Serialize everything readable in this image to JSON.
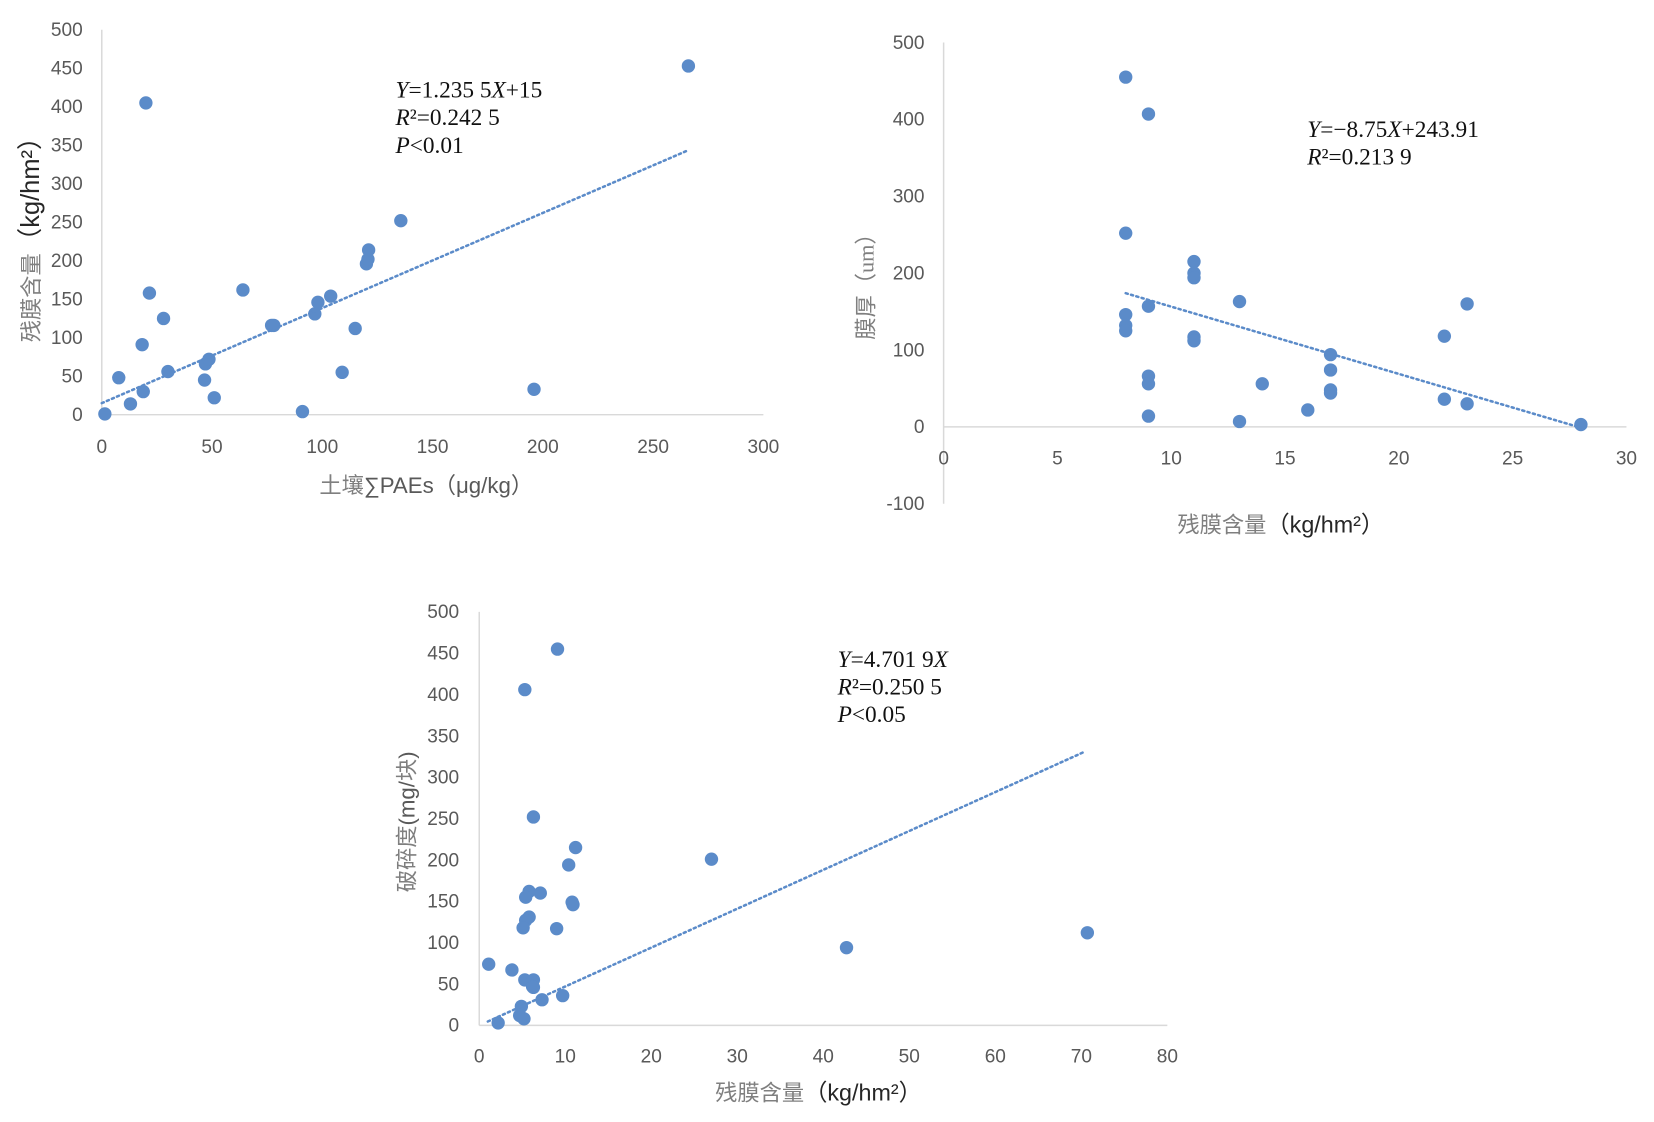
{
  "chart_data": [
    {
      "type": "scatter",
      "xlabel": "土壤∑PAEs（μg/kg）",
      "ylabel": "残膜含量（kg/hm²）",
      "xlim": [
        0,
        300
      ],
      "ylim": [
        0,
        500
      ],
      "xticks": [
        0,
        50,
        100,
        150,
        200,
        250,
        300
      ],
      "yticks": [
        0,
        50,
        100,
        150,
        200,
        250,
        300,
        350,
        400,
        450,
        500
      ],
      "grid": false,
      "color": "#5B8BC9",
      "points": [
        [
          1.4,
          1
        ],
        [
          7.7,
          48
        ],
        [
          13,
          14
        ],
        [
          18.3,
          91
        ],
        [
          18.8,
          30
        ],
        [
          20,
          405
        ],
        [
          21.6,
          158
        ],
        [
          28,
          125
        ],
        [
          30,
          56
        ],
        [
          46.6,
          45
        ],
        [
          47,
          66
        ],
        [
          48.6,
          72
        ],
        [
          51,
          22
        ],
        [
          64,
          162
        ],
        [
          77,
          116
        ],
        [
          78,
          116
        ],
        [
          91,
          4
        ],
        [
          96.6,
          131
        ],
        [
          98,
          146
        ],
        [
          103.8,
          154
        ],
        [
          109,
          55
        ],
        [
          114.9,
          112
        ],
        [
          120,
          196
        ],
        [
          120.7,
          202
        ],
        [
          121,
          214
        ],
        [
          135.6,
          252
        ],
        [
          196,
          33
        ],
        [
          266,
          453
        ]
      ],
      "trendline": {
        "style": "dotted",
        "slope": 1.2355,
        "intercept": 15,
        "x_range": [
          0,
          266
        ]
      },
      "annotation": [
        "Y=1.235 5X+15",
        "R²=0.242 5",
        "P<0.01"
      ]
    },
    {
      "type": "scatter",
      "xlabel": "残膜含量（kg/hm²）",
      "ylabel": "膜厚（um）",
      "xlim": [
        0,
        30
      ],
      "ylim": [
        -100,
        500
      ],
      "xticks": [
        0,
        5,
        10,
        15,
        20,
        25,
        30
      ],
      "yticks": [
        -100,
        0,
        100,
        200,
        300,
        400,
        500
      ],
      "grid": false,
      "color": "#5B8BC9",
      "points": [
        [
          8,
          455
        ],
        [
          9,
          407
        ],
        [
          8,
          252
        ],
        [
          11,
          215
        ],
        [
          11,
          200
        ],
        [
          11,
          194
        ],
        [
          13,
          163
        ],
        [
          23,
          160
        ],
        [
          9,
          157
        ],
        [
          8,
          146
        ],
        [
          8,
          132
        ],
        [
          8,
          125
        ],
        [
          11,
          117
        ],
        [
          11,
          112
        ],
        [
          22,
          118
        ],
        [
          17,
          94
        ],
        [
          17,
          74
        ],
        [
          9,
          66
        ],
        [
          9,
          56
        ],
        [
          14,
          56
        ],
        [
          17,
          48
        ],
        [
          17,
          44
        ],
        [
          16,
          22
        ],
        [
          9,
          14
        ],
        [
          22,
          36
        ],
        [
          23,
          30
        ],
        [
          13,
          7
        ],
        [
          28,
          3
        ]
      ],
      "trendline": {
        "style": "dotted",
        "slope": -8.75,
        "intercept": 243.91,
        "x_range": [
          8,
          28
        ]
      },
      "annotation": [
        "Y=−8.75X+243.91",
        "R²=0.213 9"
      ]
    },
    {
      "type": "scatter",
      "xlabel": "残膜含量（kg/hm²）",
      "ylabel": "破碎度(mg/块)",
      "xlim": [
        0,
        80
      ],
      "ylim": [
        0,
        500
      ],
      "xticks": [
        0,
        10,
        20,
        30,
        40,
        50,
        60,
        70,
        80
      ],
      "yticks": [
        0,
        50,
        100,
        150,
        200,
        250,
        300,
        350,
        400,
        450,
        500
      ],
      "grid": false,
      "color": "#5B8BC9",
      "points": [
        [
          9.1,
          455
        ],
        [
          5.3,
          406
        ],
        [
          6.3,
          252
        ],
        [
          11.2,
          215
        ],
        [
          27,
          201
        ],
        [
          10.4,
          194
        ],
        [
          5.8,
          162
        ],
        [
          7.1,
          160
        ],
        [
          5.4,
          155
        ],
        [
          10.8,
          149
        ],
        [
          10.9,
          146
        ],
        [
          5.8,
          131
        ],
        [
          5.4,
          127
        ],
        [
          5.1,
          118
        ],
        [
          9,
          117
        ],
        [
          70.7,
          112
        ],
        [
          42.7,
          94
        ],
        [
          1.1,
          74
        ],
        [
          3.8,
          67
        ],
        [
          5.3,
          55
        ],
        [
          6.3,
          55
        ],
        [
          6.2,
          47
        ],
        [
          6.3,
          46
        ],
        [
          9.7,
          36
        ],
        [
          7.3,
          31
        ],
        [
          4.9,
          23
        ],
        [
          4.7,
          12
        ],
        [
          5.2,
          8
        ],
        [
          2.2,
          3
        ]
      ],
      "trendline": {
        "style": "dotted",
        "slope": 4.7019,
        "intercept": 0,
        "x_range": [
          1,
          70.5
        ]
      },
      "annotation": [
        "Y=4.701 9X",
        "R²=0.250 5",
        "P<0.05"
      ]
    }
  ]
}
